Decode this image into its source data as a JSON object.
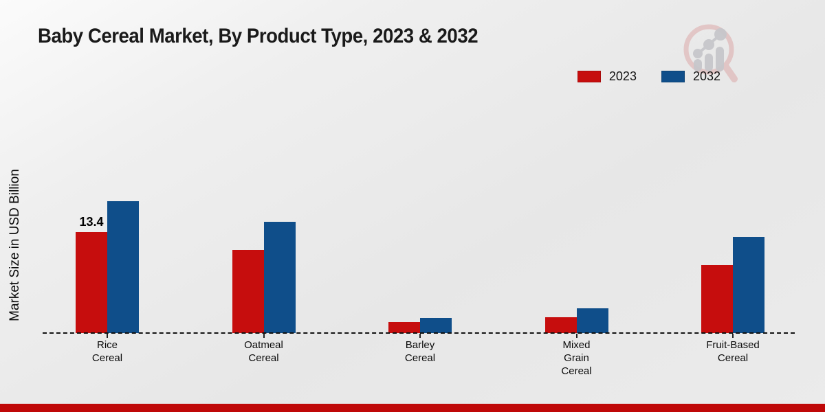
{
  "chart_data": {
    "type": "bar",
    "title": "Baby Cereal Market, By Product Type, 2023 & 2032",
    "xlabel": "",
    "ylabel": "Market Size in USD Billion",
    "categories": [
      "Rice Cereal",
      "Oatmeal Cereal",
      "Barley Cereal",
      "Mixed Grain Cereal",
      "Fruit-Based Cereal"
    ],
    "categories_display": [
      "Rice\nCereal",
      "Oatmeal\nCereal",
      "Barley\nCereal",
      "Mixed\nGrain\nCereal",
      "Fruit-Based\nCereal"
    ],
    "series": [
      {
        "name": "2023",
        "color": "#c60d0d",
        "values": [
          13.4,
          11.0,
          1.5,
          2.1,
          9.0
        ],
        "data_labels": [
          "13.4",
          "",
          "",
          "",
          ""
        ]
      },
      {
        "name": "2032",
        "color": "#0f4e8a",
        "values": [
          17.5,
          14.8,
          2.0,
          3.3,
          12.8
        ],
        "data_labels": [
          "",
          "",
          "",
          "",
          ""
        ]
      }
    ],
    "ylim": [
      0,
      20
    ],
    "grid": false,
    "legend_position": "top-right",
    "baseline_style": "dashed",
    "only_labeled_value_note": "13.4"
  },
  "page": {
    "footer_color": "#bf0808",
    "logo_name": "magnifier-growth-chart-watermark"
  }
}
